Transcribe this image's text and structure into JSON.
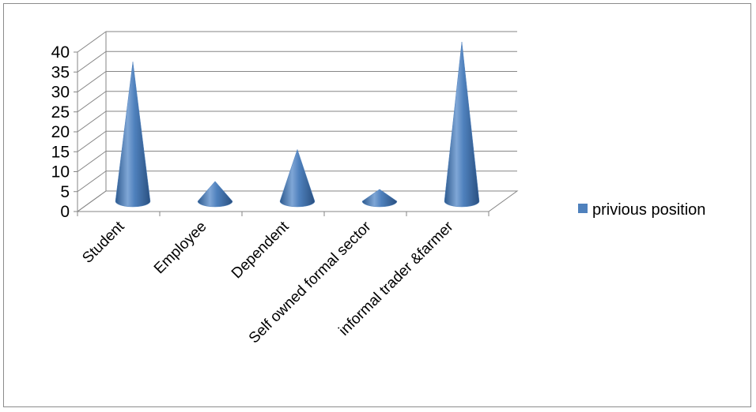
{
  "chart_data": {
    "type": "bar",
    "shape": "cone",
    "three_d": true,
    "categories": [
      "Student",
      "Employee",
      "Dependent",
      "Self owned formal sector",
      "informal trader &farmer"
    ],
    "series": [
      {
        "name": "privious position",
        "values": [
          35,
          5,
          13,
          3,
          40
        ],
        "color": "#4F81BD"
      }
    ],
    "title": "",
    "xlabel": "",
    "ylabel": "",
    "ylim": [
      0,
      40
    ],
    "yticks": [
      0,
      5,
      10,
      15,
      20,
      25,
      30,
      35,
      40
    ],
    "grid": true,
    "legend_position": "right"
  }
}
